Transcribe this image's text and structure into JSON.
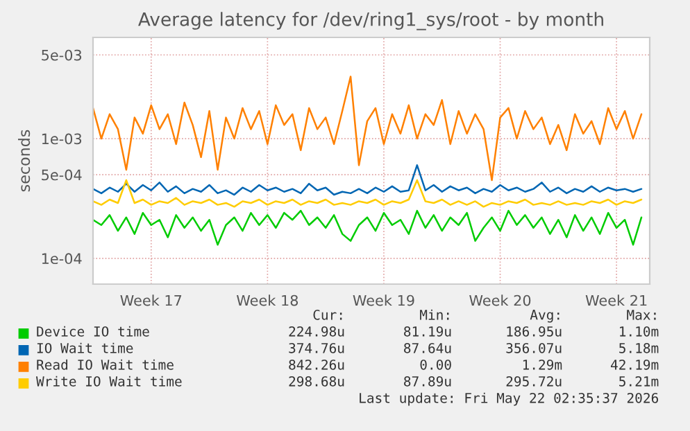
{
  "chart_data": {
    "type": "line",
    "title": "Average latency for /dev/ring1_sys/root - by month",
    "ylabel": "seconds",
    "log": "y",
    "grid": true,
    "legend": "bottom",
    "categories": [
      null,
      null,
      null,
      null,
      null,
      null,
      null,
      "Week 17",
      null,
      null,
      null,
      null,
      null,
      null,
      null,
      null,
      null,
      null,
      null,
      null,
      null,
      "Week 18",
      null,
      null,
      null,
      null,
      null,
      null,
      null,
      null,
      null,
      null,
      null,
      null,
      null,
      "Week 19",
      null,
      null,
      null,
      null,
      null,
      null,
      null,
      null,
      null,
      null,
      null,
      null,
      null,
      "Week 20",
      null,
      null,
      null,
      null,
      null,
      null,
      null,
      null,
      null,
      null,
      null,
      null,
      null,
      "Week 21",
      null,
      null,
      null
    ],
    "ylim": [
      6.1e-05,
      0.007
    ],
    "yticks": [
      {
        "value": 0.0001,
        "label": "1e-04"
      },
      {
        "value": 0.0005,
        "label": "5e-04"
      },
      {
        "value": 0.001,
        "label": "1e-03"
      },
      {
        "value": 0.005,
        "label": "5e-03"
      }
    ],
    "series": [
      {
        "name": "Device IO time",
        "color": "#00cc00",
        "values": [
          0.00021,
          0.00019,
          0.00023,
          0.00017,
          0.00022,
          0.00016,
          0.00024,
          0.00019,
          0.00021,
          0.00015,
          0.00023,
          0.00018,
          0.00022,
          0.00017,
          0.00021,
          0.00013,
          0.00019,
          0.00022,
          0.00017,
          0.00024,
          0.00019,
          0.00023,
          0.00018,
          0.00024,
          0.00021,
          0.00025,
          0.00019,
          0.00022,
          0.00018,
          0.00023,
          0.00016,
          0.00014,
          0.00019,
          0.00022,
          0.00017,
          0.00024,
          0.00019,
          0.00021,
          0.00016,
          0.00025,
          0.00018,
          0.00023,
          0.00017,
          0.00022,
          0.00019,
          0.00024,
          0.00014,
          0.00018,
          0.00022,
          0.00017,
          0.00025,
          0.00019,
          0.00023,
          0.00018,
          0.00022,
          0.00016,
          0.00021,
          0.00015,
          0.00023,
          0.00017,
          0.00022,
          0.00016,
          0.00024,
          0.00018,
          0.00021,
          0.00013,
          0.00022
        ]
      },
      {
        "name": "IO Wait time",
        "color": "#0066b3",
        "values": [
          0.00038,
          0.00035,
          0.00039,
          0.00036,
          0.00042,
          0.00036,
          0.00041,
          0.00037,
          0.00043,
          0.00036,
          0.0004,
          0.00035,
          0.00038,
          0.00036,
          0.00041,
          0.00035,
          0.00037,
          0.00034,
          0.00039,
          0.00036,
          0.00041,
          0.00037,
          0.00039,
          0.00036,
          0.00038,
          0.00035,
          0.00042,
          0.00037,
          0.00039,
          0.00034,
          0.00036,
          0.00035,
          0.00038,
          0.00035,
          0.00039,
          0.00036,
          0.0004,
          0.00036,
          0.00037,
          0.0006,
          0.00037,
          0.00041,
          0.00036,
          0.0004,
          0.00037,
          0.00039,
          0.00035,
          0.00038,
          0.00036,
          0.00041,
          0.00037,
          0.00039,
          0.00036,
          0.00038,
          0.00043,
          0.00036,
          0.00039,
          0.00035,
          0.00038,
          0.00036,
          0.0004,
          0.00036,
          0.00039,
          0.00037,
          0.00038,
          0.00036,
          0.00038
        ]
      },
      {
        "name": "Read IO Wait time",
        "color": "#ff8000",
        "values": [
          0.0018,
          0.001,
          0.0016,
          0.0012,
          0.00055,
          0.0015,
          0.0011,
          0.0019,
          0.0012,
          0.0016,
          0.0009,
          0.002,
          0.0013,
          0.0007,
          0.0017,
          0.00055,
          0.0015,
          0.001,
          0.0018,
          0.0012,
          0.0017,
          0.0009,
          0.0019,
          0.0013,
          0.0016,
          0.0008,
          0.0018,
          0.0012,
          0.0015,
          0.0009,
          0.0017,
          0.0033,
          0.0006,
          0.0014,
          0.0018,
          0.0009,
          0.0016,
          0.0011,
          0.0019,
          0.001,
          0.0016,
          0.0013,
          0.0021,
          0.0009,
          0.0017,
          0.0011,
          0.0016,
          0.0012,
          0.00045,
          0.0015,
          0.0018,
          0.001,
          0.0017,
          0.0012,
          0.0015,
          0.0009,
          0.0013,
          0.0008,
          0.0016,
          0.0011,
          0.0014,
          0.0009,
          0.0018,
          0.0012,
          0.0017,
          0.001,
          0.0016
        ]
      },
      {
        "name": "Write IO Wait time",
        "color": "#ffcc00",
        "values": [
          0.0003,
          0.00028,
          0.00031,
          0.00029,
          0.00045,
          0.00029,
          0.00031,
          0.00028,
          0.0003,
          0.00029,
          0.00032,
          0.00028,
          0.0003,
          0.00029,
          0.00031,
          0.00028,
          0.00029,
          0.00027,
          0.0003,
          0.00029,
          0.00031,
          0.00028,
          0.0003,
          0.00029,
          0.00031,
          0.00028,
          0.0003,
          0.00029,
          0.00031,
          0.00028,
          0.00029,
          0.00028,
          0.0003,
          0.00029,
          0.00031,
          0.00028,
          0.0003,
          0.00029,
          0.00031,
          0.00045,
          0.0003,
          0.00029,
          0.00031,
          0.00028,
          0.0003,
          0.00028,
          0.0003,
          0.00027,
          0.00029,
          0.00028,
          0.0003,
          0.00029,
          0.00031,
          0.00028,
          0.00029,
          0.00028,
          0.0003,
          0.00028,
          0.00029,
          0.00028,
          0.0003,
          0.00029,
          0.00031,
          0.00028,
          0.0003,
          0.00029,
          0.00031
        ]
      }
    ],
    "annotations": [
      "Cur:",
      "Min:",
      "Avg:",
      "Max:",
      "224.98u",
      "81.19u",
      "186.95u",
      "1.10m",
      "374.76u",
      "87.64u",
      "356.07u",
      "5.18m",
      "842.26u",
      "0.00",
      "1.29m",
      "42.19m",
      "298.68u",
      "87.89u",
      "295.72u",
      "5.21m",
      "Last update: Fri May 22 02:35:37 2026"
    ]
  }
}
